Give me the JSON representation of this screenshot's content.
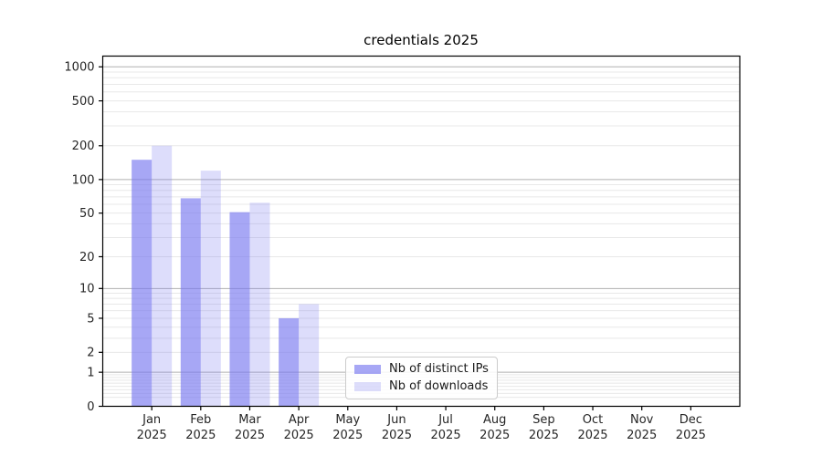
{
  "figure": {
    "background": "#ffffff"
  },
  "chart_data": {
    "type": "bar",
    "title": "credentials 2025",
    "categories": [
      "Jan",
      "Feb",
      "Mar",
      "Apr",
      "May",
      "Jun",
      "Jul",
      "Aug",
      "Sep",
      "Oct",
      "Nov",
      "Dec"
    ],
    "x_year_label": "2025",
    "series": [
      {
        "name": "Nb of distinct IPs",
        "color": "rgba(120,120,240,0.65)",
        "values": [
          150,
          68,
          51,
          5,
          0,
          0,
          0,
          0,
          0,
          0,
          0,
          0
        ]
      },
      {
        "name": "Nb of downloads",
        "color": "rgba(120,120,240,0.25)",
        "values": [
          200,
          120,
          62,
          7,
          0,
          0,
          0,
          0,
          0,
          0,
          0,
          0
        ]
      }
    ],
    "y_axis": {
      "scale": "log1p",
      "ticks": [
        0,
        1,
        2,
        5,
        10,
        20,
        50,
        100,
        200,
        500,
        1000
      ],
      "max": 1250
    },
    "x_axis": {
      "label_lines": 2
    },
    "grid": {
      "which": "both",
      "major_color": "#b0b0b0",
      "minor_color": "#e8e8e8"
    },
    "legend": {
      "position": "lower center"
    }
  }
}
